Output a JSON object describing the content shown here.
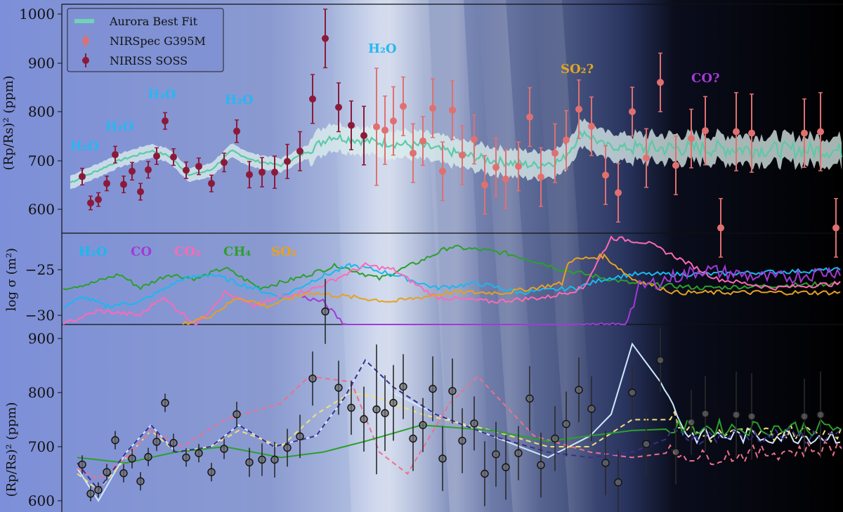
{
  "chart_data": [
    {
      "type": "scatter",
      "ylabel": "(Rp/Rs)² (ppm)",
      "ylim": [
        550,
        1020
      ],
      "yticks": [
        "600",
        "700",
        "800",
        "900",
        "1000"
      ],
      "legend": {
        "position": "top-left",
        "entries": [
          "Aurora Best Fit",
          "NIRSpec G395M",
          "NIRISS SOSS"
        ]
      },
      "annotations": [
        "H₂O",
        "H₂O",
        "H₂O",
        "H₂O",
        "H₂O",
        "SO₂?",
        "CO?"
      ],
      "series": [
        {
          "name": "NIRISS SOSS",
          "color": "#8b1a3a",
          "points": [
            [
              117,
              667,
              17
            ],
            [
              129,
              613,
              14
            ],
            [
              140,
              620,
              14
            ],
            [
              152,
              653,
              15
            ],
            [
              164,
              712,
              17
            ],
            [
              176,
              651,
              17
            ],
            [
              188,
              678,
              18
            ],
            [
              200,
              636,
              17
            ],
            [
              211,
              681,
              17
            ],
            [
              223,
              709,
              17
            ],
            [
              235,
              781,
              17
            ],
            [
              247,
              707,
              17
            ],
            [
              265,
              680,
              17
            ],
            [
              283,
              688,
              17
            ],
            [
              301,
              653,
              17
            ],
            [
              319,
              696,
              19
            ],
            [
              337,
              760,
              23
            ],
            [
              355,
              671,
              27
            ],
            [
              373,
              676,
              30
            ],
            [
              391,
              676,
              33
            ],
            [
              409,
              698,
              35
            ],
            [
              427,
              719,
              40
            ],
            [
              445,
              826,
              50
            ],
            [
              463,
              950,
              60
            ],
            [
              482,
              809,
              50
            ],
            [
              500,
              772,
              50
            ],
            [
              518,
              751,
              60
            ]
          ]
        },
        {
          "name": "NIRSpec G395M",
          "color": "#e07070",
          "points": [
            [
              536,
              769,
              120
            ],
            [
              548,
              762,
              70
            ],
            [
              560,
              781,
              70
            ],
            [
              574,
              811,
              60
            ],
            [
              588,
              715,
              60
            ],
            [
              602,
              740,
              50
            ],
            [
              616,
              807,
              60
            ],
            [
              630,
              678,
              60
            ],
            [
              644,
              803,
              60
            ],
            [
              658,
              711,
              60
            ],
            [
              675,
              743,
              50
            ],
            [
              690,
              650,
              60
            ],
            [
              706,
              686,
              60
            ],
            [
              720,
              662,
              60
            ],
            [
              738,
              688,
              50
            ],
            [
              754,
              789,
              60
            ],
            [
              770,
              666,
              60
            ],
            [
              790,
              715,
              60
            ],
            [
              806,
              742,
              60
            ],
            [
              824,
              805,
              60
            ],
            [
              842,
              770,
              60
            ],
            [
              862,
              670,
              60
            ],
            [
              880,
              634,
              60
            ],
            [
              900,
              800,
              50
            ],
            [
              920,
              705,
              60
            ],
            [
              940,
              860,
              60
            ],
            [
              962,
              690,
              60
            ],
            [
              984,
              745,
              60
            ],
            [
              1004,
              761,
              70
            ],
            [
              1026,
              562,
              60
            ],
            [
              1048,
              759,
              80
            ],
            [
              1070,
              756,
              80
            ],
            [
              1145,
              756,
              70
            ],
            [
              1168,
              759,
              80
            ],
            [
              1190,
              562,
              60
            ]
          ]
        }
      ]
    },
    {
      "type": "line",
      "ylabel": "log σ (m²)",
      "ylim": [
        -31.5,
        -20
      ],
      "yticks": [
        "−25",
        "−30"
      ],
      "legend_inline": [
        "H₂O",
        "CO",
        "CO₂",
        "CH₄",
        "SO₂"
      ],
      "series_colors": {
        "H₂O": "#1ab8f0",
        "CO": "#a23ad6",
        "CO₂": "#ff69b4",
        "CH₄": "#2ba02b",
        "SO₂": "#e8a020"
      }
    },
    {
      "type": "scatter",
      "ylabel": "(Rp/Rs)² (ppm)",
      "ylim": [
        580,
        930
      ],
      "yticks": [
        "600",
        "700",
        "800",
        "900"
      ]
    }
  ]
}
